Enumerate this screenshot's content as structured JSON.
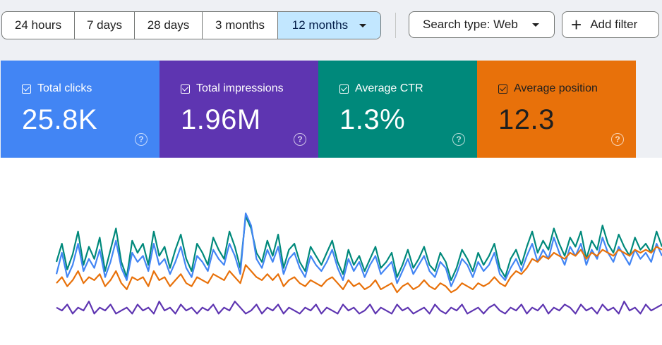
{
  "date_range": {
    "options": [
      "24 hours",
      "7 days",
      "28 days",
      "3 months",
      "12 months"
    ],
    "selected": "12 months"
  },
  "search_type": {
    "label": "Search type: Web"
  },
  "add_filter": {
    "label": "Add filter"
  },
  "metrics": [
    {
      "label": "Total clicks",
      "value": "25.8K",
      "color": "#4285f4",
      "checked": true
    },
    {
      "label": "Total impressions",
      "value": "1.96M",
      "color": "#5e35b1",
      "checked": true
    },
    {
      "label": "Average CTR",
      "value": "1.3%",
      "color": "#00897b",
      "checked": true
    },
    {
      "label": "Average position",
      "value": "12.3",
      "color": "#e8710a",
      "checked": true
    }
  ],
  "chart_data": {
    "type": "line",
    "grid": false,
    "ylim": [
      0,
      100
    ],
    "series": [
      {
        "values": [
          50,
          62,
          45,
          55,
          70,
          48,
          60,
          52,
          66,
          44,
          58,
          72,
          50,
          40,
          64,
          56,
          62,
          48,
          70,
          54,
          60,
          46,
          58,
          68,
          52,
          44,
          62,
          56,
          48,
          66,
          58,
          52,
          70,
          60,
          46,
          80,
          72,
          56,
          50,
          64,
          54,
          68,
          46,
          58,
          62,
          50,
          44,
          60,
          54,
          48,
          56,
          64,
          50,
          42,
          58,
          48,
          54,
          44,
          52,
          60,
          46,
          50,
          56,
          40,
          48,
          58,
          46,
          52,
          60,
          48,
          44,
          56,
          50,
          38,
          46,
          58,
          52,
          44,
          56,
          48,
          54,
          62,
          46,
          40,
          52,
          58,
          48,
          60,
          70,
          56,
          64,
          58,
          72,
          62,
          54,
          66,
          60,
          70,
          52,
          64,
          58,
          74,
          62,
          56,
          68,
          60,
          54,
          66,
          58,
          62,
          56,
          70,
          60
        ],
        "color": "#00897b"
      },
      {
        "values": [
          42,
          56,
          40,
          48,
          62,
          44,
          52,
          46,
          58,
          40,
          50,
          64,
          46,
          38,
          56,
          50,
          54,
          44,
          62,
          48,
          52,
          42,
          50,
          60,
          46,
          40,
          54,
          50,
          44,
          58,
          52,
          48,
          62,
          54,
          42,
          82,
          74,
          52,
          46,
          58,
          50,
          60,
          42,
          52,
          56,
          46,
          40,
          54,
          48,
          44,
          50,
          58,
          46,
          38,
          52,
          44,
          50,
          40,
          48,
          54,
          42,
          46,
          50,
          36,
          44,
          52,
          42,
          48,
          54,
          44,
          40,
          50,
          46,
          34,
          42,
          52,
          48,
          40,
          50,
          44,
          48,
          56,
          42,
          38,
          46,
          52,
          44,
          54,
          62,
          50,
          58,
          52,
          66,
          56,
          48,
          60,
          54,
          62,
          48,
          58,
          52,
          66,
          56,
          50,
          60,
          54,
          48,
          58,
          52,
          56,
          50,
          62,
          54
        ],
        "color": "#4285f4"
      },
      {
        "values": [
          36,
          40,
          34,
          38,
          44,
          36,
          40,
          38,
          42,
          34,
          38,
          44,
          36,
          32,
          40,
          38,
          40,
          34,
          44,
          38,
          40,
          34,
          38,
          42,
          36,
          34,
          40,
          38,
          36,
          42,
          40,
          38,
          44,
          40,
          36,
          48,
          44,
          40,
          38,
          42,
          38,
          42,
          34,
          38,
          40,
          36,
          34,
          38,
          36,
          34,
          38,
          40,
          36,
          32,
          38,
          34,
          36,
          32,
          34,
          38,
          32,
          34,
          36,
          30,
          34,
          36,
          32,
          34,
          38,
          34,
          32,
          36,
          34,
          30,
          32,
          36,
          34,
          32,
          36,
          34,
          36,
          40,
          36,
          34,
          40,
          44,
          42,
          46,
          52,
          50,
          54,
          52,
          56,
          54,
          52,
          56,
          54,
          58,
          52,
          56,
          54,
          58,
          56,
          54,
          58,
          56,
          54,
          58,
          56,
          58,
          56,
          60,
          58
        ],
        "color": "#e8710a"
      },
      {
        "values": [
          20,
          18,
          22,
          16,
          20,
          18,
          24,
          16,
          20,
          18,
          22,
          16,
          18,
          20,
          16,
          22,
          18,
          20,
          16,
          24,
          18,
          20,
          16,
          22,
          18,
          20,
          16,
          20,
          18,
          22,
          16,
          20,
          18,
          24,
          20,
          16,
          18,
          22,
          16,
          20,
          18,
          22,
          16,
          20,
          18,
          16,
          20,
          18,
          22,
          16,
          20,
          18,
          16,
          22,
          18,
          20,
          16,
          18,
          22,
          16,
          20,
          18,
          16,
          22,
          18,
          20,
          16,
          18,
          20,
          16,
          22,
          18,
          16,
          20,
          18,
          22,
          16,
          18,
          20,
          16,
          20,
          22,
          18,
          16,
          20,
          18,
          22,
          16,
          20,
          18,
          22,
          16,
          20,
          18,
          22,
          20,
          16,
          22,
          18,
          20,
          16,
          22,
          18,
          20,
          16,
          24,
          18,
          20,
          16,
          22,
          18,
          20,
          22
        ],
        "color": "#5e35b1"
      }
    ]
  }
}
